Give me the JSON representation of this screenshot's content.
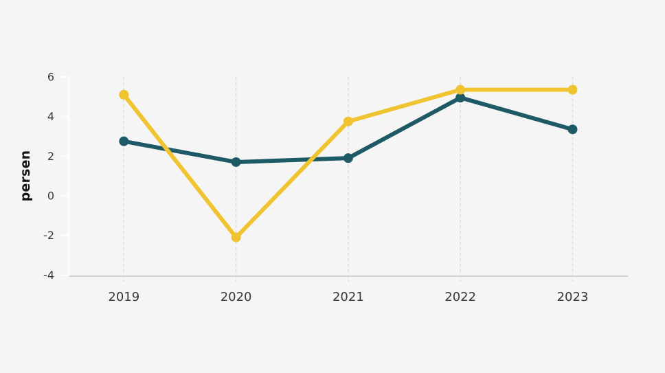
{
  "page": {
    "background_color": "#f5f5f5"
  },
  "chart": {
    "title": "",
    "ylabel": "persen",
    "x_axis_labels": [
      "2019",
      "2020",
      "2021",
      "2022",
      "2023"
    ],
    "y_axis_labels": [
      "6",
      "4",
      "2",
      "0",
      "-2",
      "-4"
    ]
  },
  "chart_data": {
    "type": "line",
    "title": "",
    "xlabel": "",
    "ylabel": "persen",
    "categories": [
      "2019",
      "2020",
      "2021",
      "2022",
      "2023"
    ],
    "series": [
      {
        "name": "teal-series",
        "color": "#1e5a66",
        "values": [
          2.75,
          1.7,
          1.9,
          4.95,
          3.35
        ]
      },
      {
        "name": "yellow-series",
        "color": "#f0c331",
        "values": [
          5.1,
          -2.1,
          3.75,
          5.35,
          5.35
        ]
      }
    ],
    "ylim": [
      -4,
      6
    ],
    "y_ticks": [
      6,
      4,
      2,
      0,
      -2,
      -4
    ],
    "grid": "vertical-dashed-gridlines",
    "legend_position": "none",
    "marker": "circle",
    "colors": {
      "background": "#f5f5f5",
      "grid": "#d8d8d8",
      "x_axis_line": "#cccccc",
      "y_axis_line": "#fdfdfd",
      "tick_label": "#383838",
      "axis_title": "#161616"
    }
  }
}
